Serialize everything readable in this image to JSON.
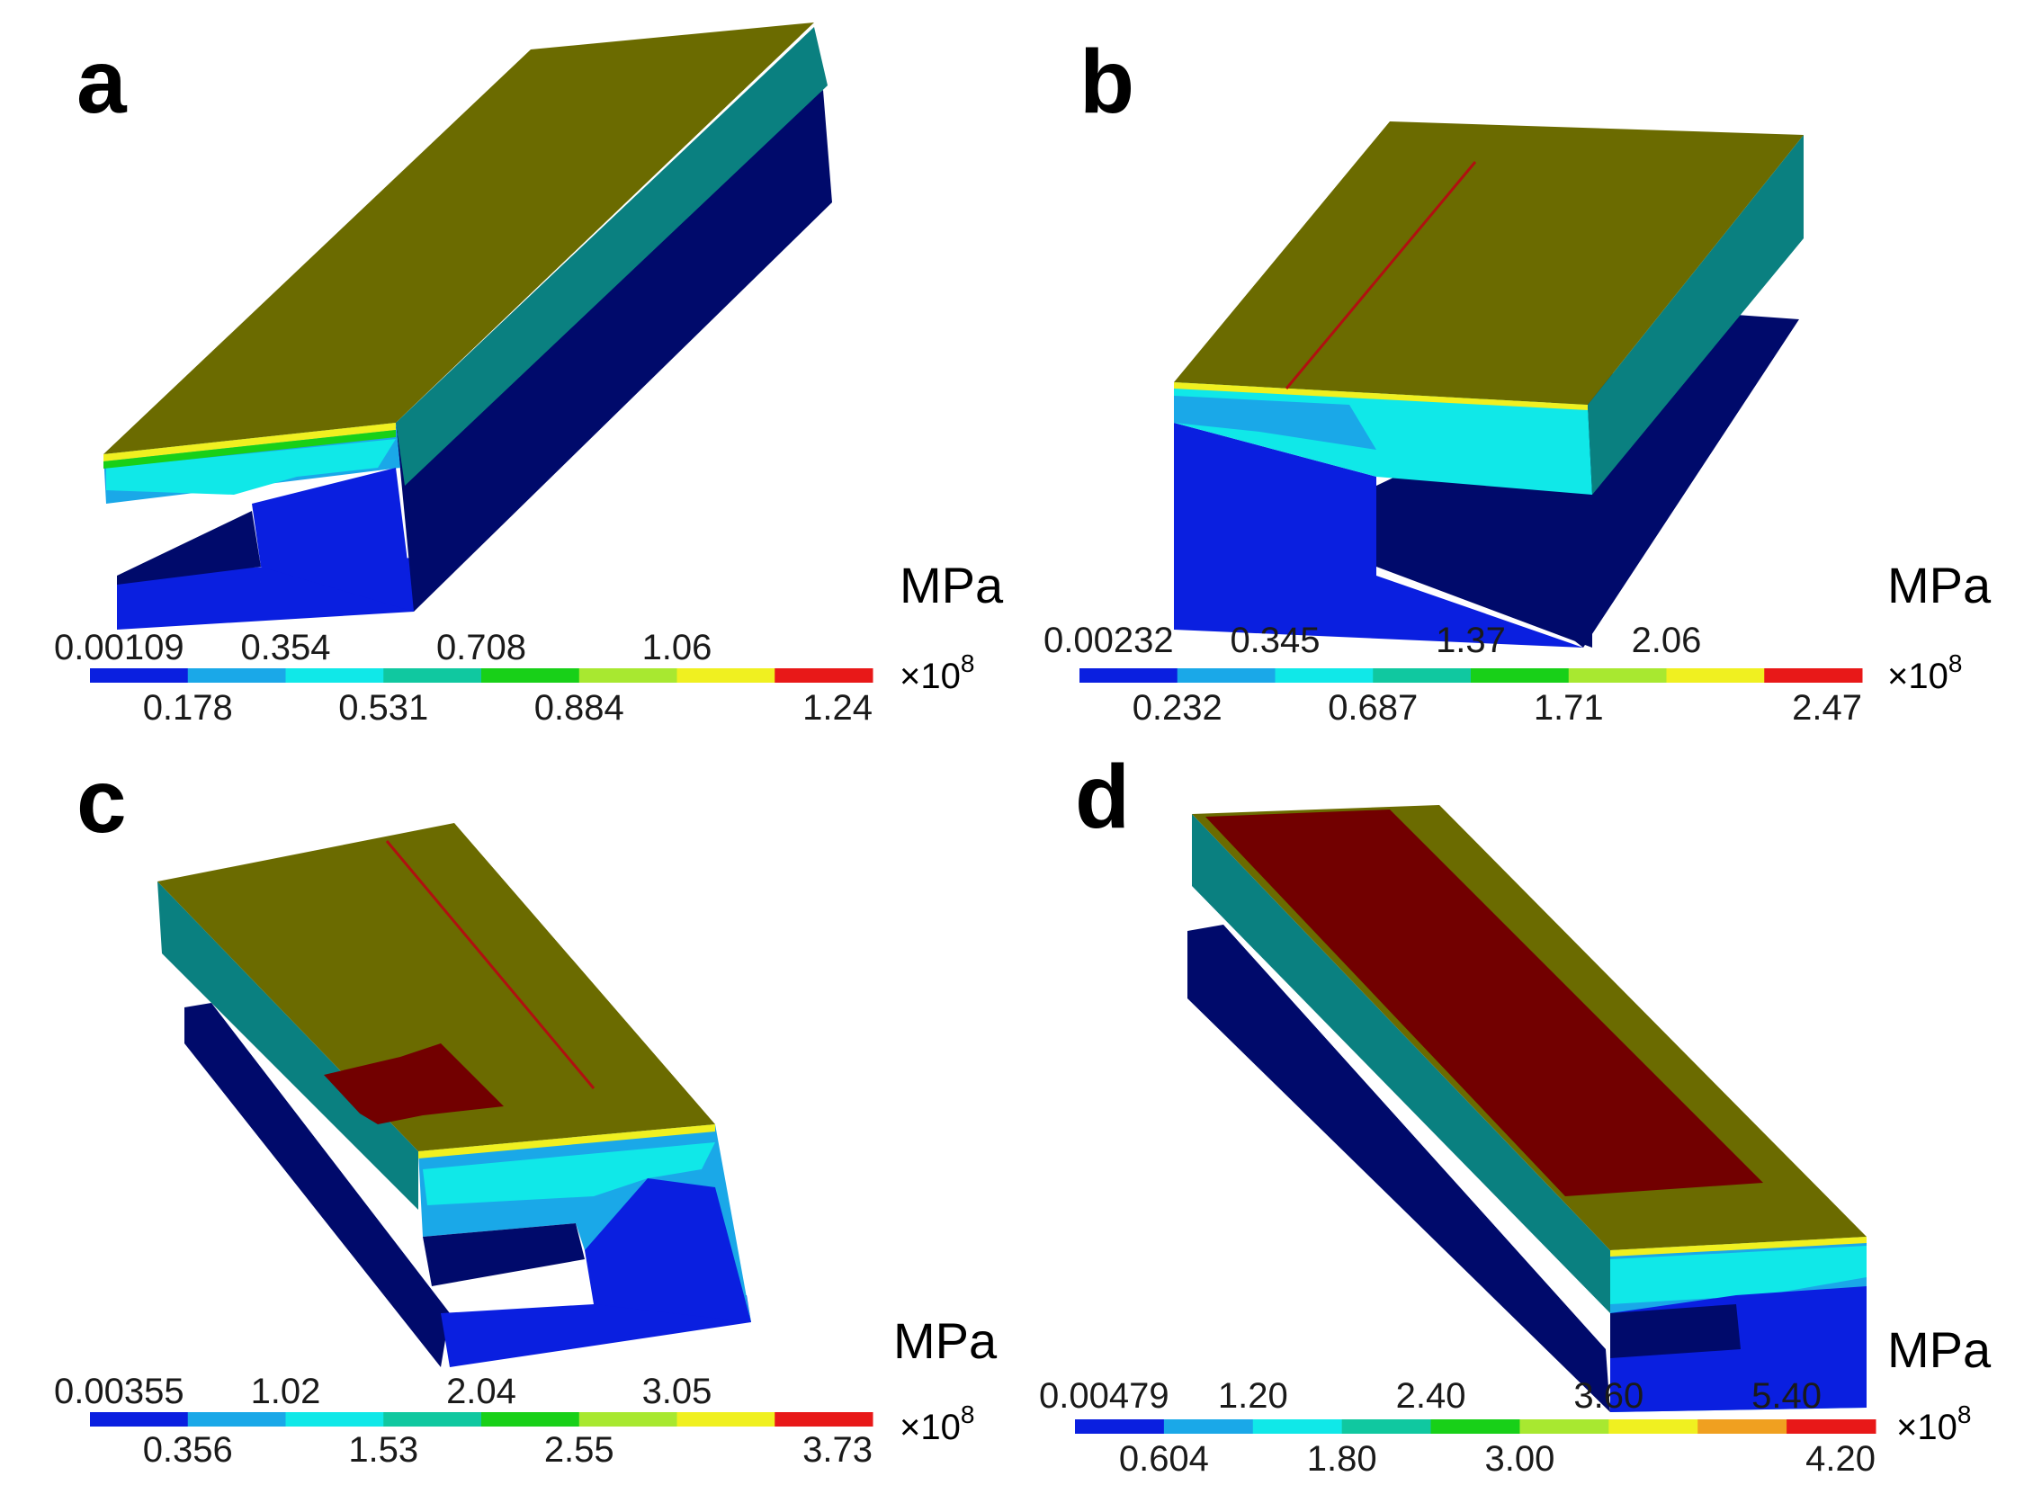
{
  "colors": {
    "blue_dark": "#000a6b",
    "blue": "#0a1fe0",
    "light_blue": "#1aa8e8",
    "cyan": "#10e8e8",
    "teal": "#0a8080",
    "green": "#18d018",
    "olive": "#6b6b00",
    "lime": "#a8e830",
    "yellow": "#f0f020",
    "orange": "#f0a020",
    "red": "#e81818",
    "dark_red": "#720000"
  },
  "panels": [
    {
      "letter": "a",
      "unit": "MPa",
      "scale": "×10",
      "exponent": "8",
      "upper_ticks": [
        "0.00109",
        "0.354",
        "0.708",
        "1.06"
      ],
      "lower_ticks": [
        "0.178",
        "0.531",
        "0.884",
        "1.24"
      ],
      "legend_colors": [
        "#0a1fe0",
        "#1aa8e8",
        "#10e8e8",
        "#10c8a0",
        "#18d018",
        "#a8e830",
        "#f0f020",
        "#e81818"
      ]
    },
    {
      "letter": "b",
      "unit": "MPa",
      "scale": "×10",
      "exponent": "8",
      "upper_ticks": [
        "0.00232",
        "0.345",
        "1.37",
        "2.06"
      ],
      "lower_ticks": [
        "0.232",
        "0.687",
        "1.71",
        "2.47"
      ],
      "legend_colors": [
        "#0a1fe0",
        "#1aa8e8",
        "#10e8e8",
        "#10c8a0",
        "#18d018",
        "#a8e830",
        "#f0f020",
        "#e81818"
      ]
    },
    {
      "letter": "c",
      "unit": "MPa",
      "scale": "×10",
      "exponent": "8",
      "upper_ticks": [
        "0.00355",
        "1.02",
        "2.04",
        "3.05"
      ],
      "lower_ticks": [
        "0.356",
        "1.53",
        "2.55",
        "3.73"
      ],
      "legend_colors": [
        "#0a1fe0",
        "#1aa8e8",
        "#10e8e8",
        "#10c8a0",
        "#18d018",
        "#a8e830",
        "#f0f020",
        "#e81818"
      ]
    },
    {
      "letter": "d",
      "unit": "MPa",
      "scale": "×10",
      "exponent": "8",
      "upper_ticks": [
        "0.00479",
        "1.20",
        "2.40",
        "3.60",
        "5.40"
      ],
      "lower_ticks": [
        "0.604",
        "1.80",
        "3.00",
        "4.20"
      ],
      "legend_colors": [
        "#0a1fe0",
        "#1aa8e8",
        "#10e8e8",
        "#10c8a0",
        "#18d018",
        "#a8e830",
        "#f0f020",
        "#f0a020",
        "#e81818"
      ]
    }
  ]
}
